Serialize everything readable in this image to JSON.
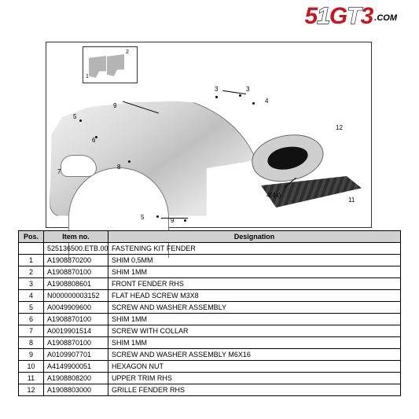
{
  "logo": {
    "glyphs": [
      "5",
      "1",
      "G",
      "T",
      "3"
    ],
    "suffix": ".COM",
    "accent_color": "#c9151e",
    "outline_color": "#000000"
  },
  "diagram": {
    "border_color": "#333333",
    "inset": {
      "callout_1": "1",
      "callout_2": "2"
    },
    "callouts": {
      "n3a": "3",
      "n3b": "3",
      "n4": "4",
      "n4x": "4(4x)",
      "n5a": "5",
      "n5b": "5",
      "n6": "6",
      "n7": "7",
      "n8": "8",
      "n9a": "9",
      "n9b": "9",
      "n11": "11",
      "n12": "12"
    }
  },
  "table": {
    "headers": {
      "pos": "Pos.",
      "item": "Item no.",
      "designation": "Designation"
    },
    "header_bg": "#d0d0d0",
    "rows": [
      {
        "pos": "",
        "item": "525136500.ETB.00",
        "designation": "FASTENING KIT FENDER"
      },
      {
        "pos": "1",
        "item": "A1908870200",
        "designation": "SHIM 0,5MM"
      },
      {
        "pos": "2",
        "item": "A1908870100",
        "designation": "SHIM 1MM"
      },
      {
        "pos": "3",
        "item": "A1908808601",
        "designation": "FRONT FENDER RHS"
      },
      {
        "pos": "4",
        "item": "N000000003152",
        "designation": "FLAT HEAD SCREW M3X8"
      },
      {
        "pos": "5",
        "item": "A0049909600",
        "designation": "SCREW AND WASHER ASSEMBLY"
      },
      {
        "pos": "6",
        "item": "A1908870100",
        "designation": "SHIM 1MM"
      },
      {
        "pos": "7",
        "item": "A0019901514",
        "designation": "SCREW WITH COLLAR"
      },
      {
        "pos": "8",
        "item": "A1908870100",
        "designation": "SHIM 1MM"
      },
      {
        "pos": "9",
        "item": "A0109907701",
        "designation": "SCREW AND WASHER ASSEMBLY M6X16"
      },
      {
        "pos": "10",
        "item": "A4149900051",
        "designation": "HEXAGON NUT"
      },
      {
        "pos": "11",
        "item": "A1908808200",
        "designation": "UPPER TRIM RHS"
      },
      {
        "pos": "12",
        "item": "A1908803000",
        "designation": "GRILLE FENDER RHS"
      }
    ]
  }
}
